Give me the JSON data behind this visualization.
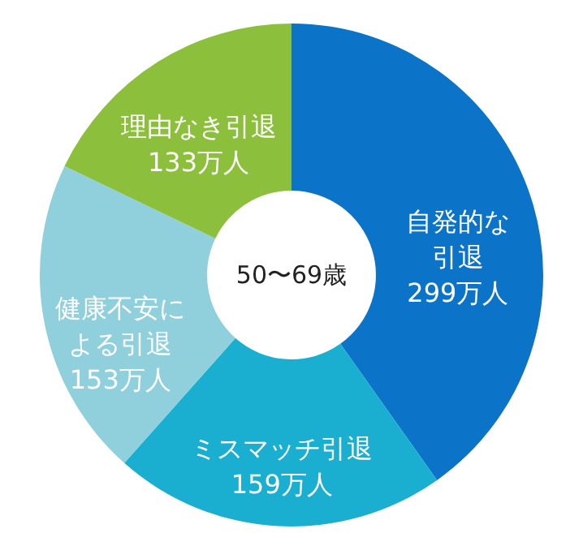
{
  "chart_data": {
    "type": "donut",
    "categories": [
      "自発的な引退",
      "ミスマッチ引退",
      "健康不安による引退",
      "理由なき引退"
    ],
    "values": [
      299,
      159,
      153,
      133
    ],
    "value_labels": [
      "299万人",
      "159万人",
      "153万人",
      "133万人"
    ],
    "colors": [
      "#0b74c8",
      "#1aafd0",
      "#8fd0dc",
      "#8cbf3c"
    ],
    "annotations": [
      "50〜69歳"
    ],
    "legend": false
  }
}
